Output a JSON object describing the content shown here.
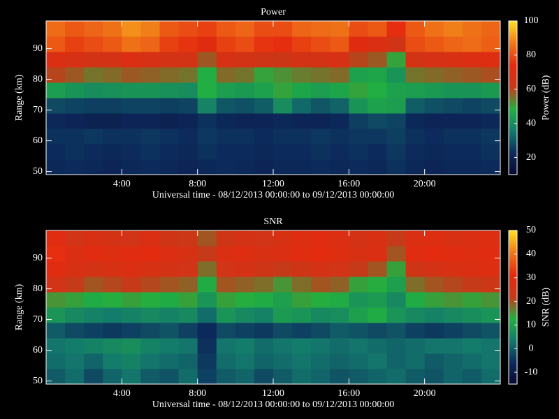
{
  "chart_data": [
    {
      "type": "heatmap",
      "title": "Power",
      "xlabel": "Universal time - 08/12/2013 00:00:00 to 09/12/2013 00:00:00",
      "ylabel": "Range (km)",
      "colorbar_label": "Power (dB)",
      "xlim": [
        0,
        24
      ],
      "xticks": [
        {
          "value": 4,
          "label": "4:00"
        },
        {
          "value": 8,
          "label": "8:00"
        },
        {
          "value": 12,
          "label": "12:00"
        },
        {
          "value": 16,
          "label": "16:00"
        },
        {
          "value": 20,
          "label": "20:00"
        }
      ],
      "ylim": [
        49,
        99
      ],
      "yticks": [
        50,
        60,
        70,
        80,
        90
      ],
      "zlim": [
        10,
        100
      ],
      "zticks": [
        20,
        40,
        60,
        80,
        100
      ],
      "colorscale": [
        "#0a0a30",
        "#0c2a5c",
        "#137a6c",
        "#22b040",
        "#c83818",
        "#e42a10",
        "#f07818",
        "#ffe020"
      ],
      "xbins": [
        0,
        1,
        2,
        3,
        4,
        5,
        6,
        7,
        8,
        9,
        10,
        11,
        12,
        13,
        14,
        15,
        16,
        17,
        18,
        19,
        20,
        21,
        22,
        23,
        24
      ],
      "ybins": [
        49,
        54,
        59,
        64,
        69,
        74,
        79,
        84,
        89,
        94,
        99
      ],
      "z": [
        [
          22,
          23,
          22,
          21,
          22,
          23,
          22,
          21,
          22,
          23,
          22,
          21,
          22,
          22,
          23,
          22,
          23,
          22,
          24,
          22,
          21,
          22,
          22,
          23
        ],
        [
          23,
          24,
          23,
          22,
          23,
          24,
          23,
          22,
          24,
          23,
          23,
          22,
          23,
          23,
          24,
          23,
          24,
          23,
          25,
          23,
          22,
          23,
          23,
          24
        ],
        [
          24,
          24,
          25,
          24,
          24,
          25,
          24,
          23,
          25,
          24,
          24,
          23,
          24,
          24,
          25,
          24,
          25,
          25,
          26,
          24,
          23,
          24,
          24,
          25
        ],
        [
          22,
          21,
          20,
          20,
          21,
          21,
          20,
          21,
          24,
          22,
          21,
          21,
          22,
          21,
          21,
          22,
          26,
          28,
          27,
          22,
          21,
          21,
          21,
          22
        ],
        [
          28,
          27,
          26,
          26,
          27,
          27,
          26,
          27,
          38,
          30,
          29,
          31,
          40,
          33,
          30,
          32,
          42,
          45,
          44,
          31,
          29,
          28,
          27,
          28
        ],
        [
          44,
          42,
          40,
          41,
          42,
          42,
          41,
          40,
          48,
          44,
          43,
          45,
          50,
          46,
          44,
          46,
          50,
          48,
          45,
          44,
          43,
          42,
          42,
          43
        ],
        [
          60,
          58,
          55,
          56,
          58,
          57,
          56,
          55,
          48,
          56,
          55,
          50,
          52,
          54,
          55,
          56,
          45,
          46,
          42,
          55,
          56,
          57,
          58,
          59
        ],
        [
          70,
          68,
          66,
          67,
          70,
          68,
          67,
          66,
          58,
          68,
          66,
          64,
          63,
          66,
          67,
          68,
          60,
          58,
          50,
          66,
          68,
          69,
          70,
          71
        ],
        [
          82,
          78,
          80,
          82,
          86,
          84,
          78,
          76,
          72,
          78,
          80,
          76,
          75,
          78,
          80,
          82,
          72,
          70,
          65,
          80,
          82,
          84,
          85,
          83
        ],
        [
          85,
          82,
          84,
          86,
          90,
          88,
          82,
          80,
          78,
          82,
          84,
          80,
          80,
          84,
          85,
          86,
          80,
          82,
          75,
          82,
          86,
          88,
          86,
          84
        ]
      ]
    },
    {
      "type": "heatmap",
      "title": "SNR",
      "xlabel": "Universal time - 08/12/2013 00:00:00 to 09/12/2013 00:00:00",
      "ylabel": "Range (km)",
      "colorbar_label": "SNR (dB)",
      "xlim": [
        0,
        24
      ],
      "xticks": [
        {
          "value": 4,
          "label": "4:00"
        },
        {
          "value": 8,
          "label": "8:00"
        },
        {
          "value": 12,
          "label": "12:00"
        },
        {
          "value": 16,
          "label": "16:00"
        },
        {
          "value": 20,
          "label": "20:00"
        }
      ],
      "ylim": [
        49,
        99
      ],
      "yticks": [
        50,
        60,
        70,
        80,
        90
      ],
      "zlim": [
        -15,
        50
      ],
      "zticks": [
        -10,
        0,
        10,
        20,
        30,
        40,
        50
      ],
      "colorscale": [
        "#0a0a30",
        "#0c2a5c",
        "#137a6c",
        "#22b040",
        "#c83818",
        "#e42a10",
        "#f07818",
        "#ffe020"
      ],
      "xbins": [
        0,
        1,
        2,
        3,
        4,
        5,
        6,
        7,
        8,
        9,
        10,
        11,
        12,
        13,
        14,
        15,
        16,
        17,
        18,
        19,
        20,
        21,
        22,
        23,
        24
      ],
      "ybins": [
        49,
        54,
        59,
        64,
        69,
        74,
        79,
        84,
        89,
        94,
        99
      ],
      "z": [
        [
          0,
          2,
          -2,
          1,
          3,
          0,
          -1,
          2,
          -3,
          0,
          1,
          -2,
          0,
          2,
          1,
          -1,
          0,
          1,
          2,
          0,
          -1,
          1,
          0,
          2
        ],
        [
          2,
          3,
          1,
          4,
          5,
          3,
          2,
          1,
          -4,
          2,
          3,
          1,
          2,
          3,
          2,
          1,
          2,
          3,
          1,
          2,
          0,
          1,
          2,
          3
        ],
        [
          3,
          4,
          5,
          6,
          7,
          5,
          4,
          3,
          -5,
          3,
          4,
          2,
          3,
          4,
          3,
          2,
          3,
          2,
          1,
          2,
          3,
          3,
          4,
          3
        ],
        [
          0,
          -2,
          -3,
          -4,
          -3,
          -2,
          -1,
          -3,
          -6,
          -2,
          -3,
          -4,
          -2,
          -3,
          -2,
          0,
          -1,
          -2,
          -1,
          -3,
          -4,
          -3,
          -2,
          -1
        ],
        [
          8,
          6,
          5,
          4,
          5,
          6,
          5,
          6,
          2,
          8,
          6,
          5,
          9,
          8,
          6,
          7,
          10,
          12,
          8,
          6,
          5,
          6,
          7,
          8
        ],
        [
          15,
          14,
          12,
          13,
          14,
          13,
          12,
          14,
          8,
          14,
          13,
          12,
          10,
          14,
          13,
          12,
          8,
          9,
          6,
          12,
          14,
          15,
          14,
          15
        ],
        [
          25,
          22,
          20,
          21,
          22,
          21,
          20,
          19,
          12,
          20,
          19,
          18,
          15,
          18,
          20,
          19,
          14,
          13,
          10,
          18,
          20,
          21,
          22,
          23
        ],
        [
          30,
          27,
          26,
          27,
          28,
          27,
          26,
          25,
          18,
          25,
          26,
          24,
          22,
          24,
          26,
          25,
          22,
          20,
          14,
          24,
          26,
          27,
          28,
          29
        ],
        [
          32,
          28,
          30,
          29,
          30,
          31,
          28,
          27,
          22,
          28,
          29,
          27,
          28,
          30,
          31,
          29,
          27,
          28,
          20,
          30,
          31,
          30,
          29,
          30
        ],
        [
          30,
          25,
          27,
          26,
          25,
          28,
          24,
          23,
          20,
          24,
          26,
          25,
          27,
          29,
          30,
          28,
          26,
          27,
          22,
          28,
          29,
          27,
          28,
          29
        ]
      ]
    }
  ]
}
